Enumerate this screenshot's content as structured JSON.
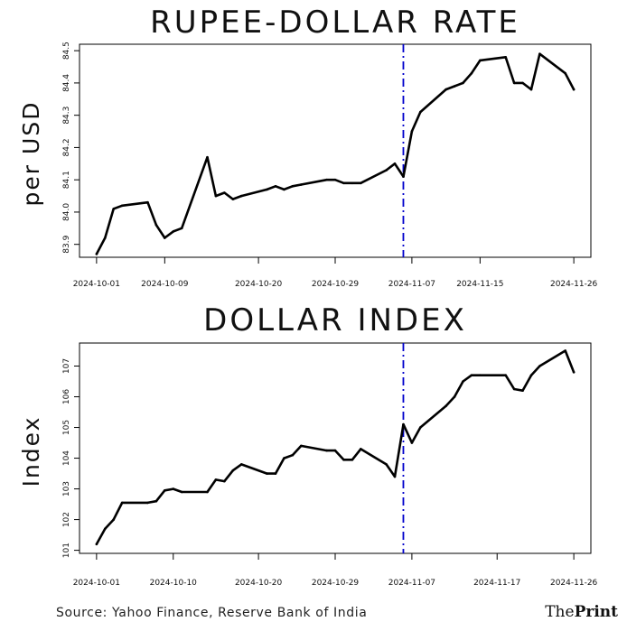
{
  "source": "Source: Yahoo Finance, Reserve Bank of India",
  "logo": {
    "the": "The",
    "print": "Print"
  },
  "colors": {
    "line": "#000000",
    "marker": "#0000cc",
    "axis": "#000000"
  },
  "chart_data": [
    {
      "type": "line",
      "title": "RUPEE-DOLLAR RATE",
      "ylabel": "per USD",
      "xlabel": "",
      "x_ticks": [
        "2024-10-01",
        "2024-10-09",
        "2024-10-20",
        "2024-10-29",
        "2024-11-07",
        "2024-11-15",
        "2024-11-26"
      ],
      "y_ticks": [
        "83.9",
        "84.0",
        "84.1",
        "84.2",
        "84.3",
        "84.4",
        "84.5"
      ],
      "ylim": [
        83.86,
        84.52
      ],
      "xlim": [
        "2024-09-29",
        "2024-11-28"
      ],
      "vertical_marker": {
        "x": "2024-11-06",
        "style": "dash-dot",
        "color": "#0000cc"
      },
      "grid": false,
      "series": [
        {
          "x": [
            "2024-10-01",
            "2024-10-02",
            "2024-10-03",
            "2024-10-04",
            "2024-10-07",
            "2024-10-08",
            "2024-10-09",
            "2024-10-10",
            "2024-10-11",
            "2024-10-14",
            "2024-10-15",
            "2024-10-16",
            "2024-10-17",
            "2024-10-18",
            "2024-10-21",
            "2024-10-22",
            "2024-10-23",
            "2024-10-24",
            "2024-10-25",
            "2024-10-28",
            "2024-10-29",
            "2024-10-30",
            "2024-10-31",
            "2024-11-01",
            "2024-11-04",
            "2024-11-05",
            "2024-11-06",
            "2024-11-07",
            "2024-11-08",
            "2024-11-11",
            "2024-11-12",
            "2024-11-13",
            "2024-11-14",
            "2024-11-15",
            "2024-11-18",
            "2024-11-19",
            "2024-11-20",
            "2024-11-21",
            "2024-11-22",
            "2024-11-25",
            "2024-11-26"
          ],
          "values": [
            83.87,
            83.92,
            84.01,
            84.02,
            84.03,
            83.96,
            83.92,
            83.94,
            83.95,
            84.17,
            84.05,
            84.06,
            84.04,
            84.05,
            84.07,
            84.08,
            84.07,
            84.08,
            84.085,
            84.1,
            84.1,
            84.09,
            84.09,
            84.09,
            84.13,
            84.15,
            84.11,
            84.25,
            84.31,
            84.38,
            84.39,
            84.4,
            84.43,
            84.47,
            84.48,
            84.4,
            84.4,
            84.38,
            84.49,
            84.43,
            84.38
          ]
        }
      ]
    },
    {
      "type": "line",
      "title": "DOLLAR INDEX",
      "ylabel": "Index",
      "xlabel": "",
      "x_ticks": [
        "2024-10-01",
        "2024-10-10",
        "2024-10-20",
        "2024-10-29",
        "2024-11-07",
        "2024-11-17",
        "2024-11-26"
      ],
      "y_ticks": [
        "101",
        "102",
        "103",
        "104",
        "105",
        "106",
        "107"
      ],
      "ylim": [
        100.9,
        107.75
      ],
      "xlim": [
        "2024-09-29",
        "2024-11-28"
      ],
      "vertical_marker": {
        "x": "2024-11-06",
        "style": "dash-dot",
        "color": "#0000cc"
      },
      "grid": false,
      "series": [
        {
          "x": [
            "2024-10-01",
            "2024-10-02",
            "2024-10-03",
            "2024-10-04",
            "2024-10-07",
            "2024-10-08",
            "2024-10-09",
            "2024-10-10",
            "2024-10-11",
            "2024-10-14",
            "2024-10-15",
            "2024-10-16",
            "2024-10-17",
            "2024-10-18",
            "2024-10-21",
            "2024-10-22",
            "2024-10-23",
            "2024-10-24",
            "2024-10-25",
            "2024-10-28",
            "2024-10-29",
            "2024-10-30",
            "2024-10-31",
            "2024-11-01",
            "2024-11-04",
            "2024-11-05",
            "2024-11-06",
            "2024-11-07",
            "2024-11-08",
            "2024-11-11",
            "2024-11-12",
            "2024-11-13",
            "2024-11-14",
            "2024-11-15",
            "2024-11-18",
            "2024-11-19",
            "2024-11-20",
            "2024-11-21",
            "2024-11-22",
            "2024-11-25",
            "2024-11-26"
          ],
          "values": [
            101.2,
            101.7,
            102.0,
            102.55,
            102.55,
            102.6,
            102.95,
            103.0,
            102.9,
            102.9,
            103.3,
            103.25,
            103.6,
            103.8,
            103.5,
            103.5,
            104.0,
            104.1,
            104.4,
            104.25,
            104.25,
            103.95,
            103.95,
            104.3,
            103.8,
            103.4,
            105.1,
            104.5,
            105.0,
            105.7,
            106.0,
            106.5,
            106.7,
            106.7,
            106.7,
            106.25,
            106.2,
            106.7,
            107.0,
            107.5,
            106.8
          ]
        }
      ]
    }
  ]
}
